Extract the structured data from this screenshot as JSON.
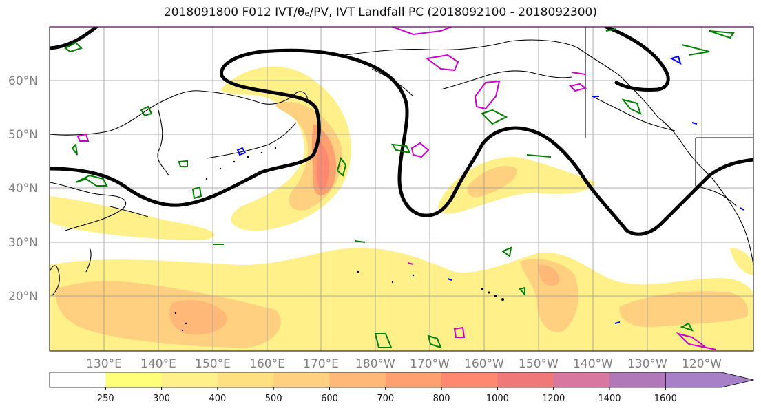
{
  "title": "2018091800 F012 IVT/θₑ/PV, IVT Landfall PC (2018092100 - 2018092300)",
  "map": {
    "lat_labels": [
      {
        "label": "60°N",
        "lat": 60
      },
      {
        "label": "50°N",
        "lat": 50
      },
      {
        "label": "40°N",
        "lat": 40
      },
      {
        "label": "30°N",
        "lat": 30
      },
      {
        "label": "20°N",
        "lat": 20
      }
    ],
    "lon_labels": [
      {
        "label": "130°E",
        "lon": 130
      },
      {
        "label": "140°E",
        "lon": 140
      },
      {
        "label": "150°E",
        "lon": 150
      },
      {
        "label": "160°E",
        "lon": 160
      },
      {
        "label": "170°E",
        "lon": 170
      },
      {
        "label": "180°W",
        "lon": 180
      },
      {
        "label": "170°W",
        "lon": 190
      },
      {
        "label": "160°W",
        "lon": 200
      },
      {
        "label": "150°W",
        "lon": 210
      },
      {
        "label": "140°W",
        "lon": 220
      },
      {
        "label": "130°W",
        "lon": 230
      },
      {
        "label": "120°W",
        "lon": 240
      }
    ],
    "lon_range": [
      120,
      248
    ],
    "lat_range": [
      10,
      70
    ],
    "grid": true
  },
  "colorbar": {
    "ticks": [
      "250",
      "300",
      "400",
      "500",
      "600",
      "700",
      "800",
      "1000",
      "1200",
      "1400",
      "1600"
    ],
    "colors": [
      "#ffffff",
      "#ffff7a",
      "#fff08a",
      "#ffe080",
      "#ffd080",
      "#ffb878",
      "#ffa070",
      "#ff8870",
      "#f07878",
      "#d878a0",
      "#b078b8",
      "#a880c8"
    ]
  },
  "colors": {
    "theta_contour": "#000000",
    "pv_green": "#008000",
    "pv_magenta": "#cc00cc",
    "pv_blue": "#0000ee"
  }
}
